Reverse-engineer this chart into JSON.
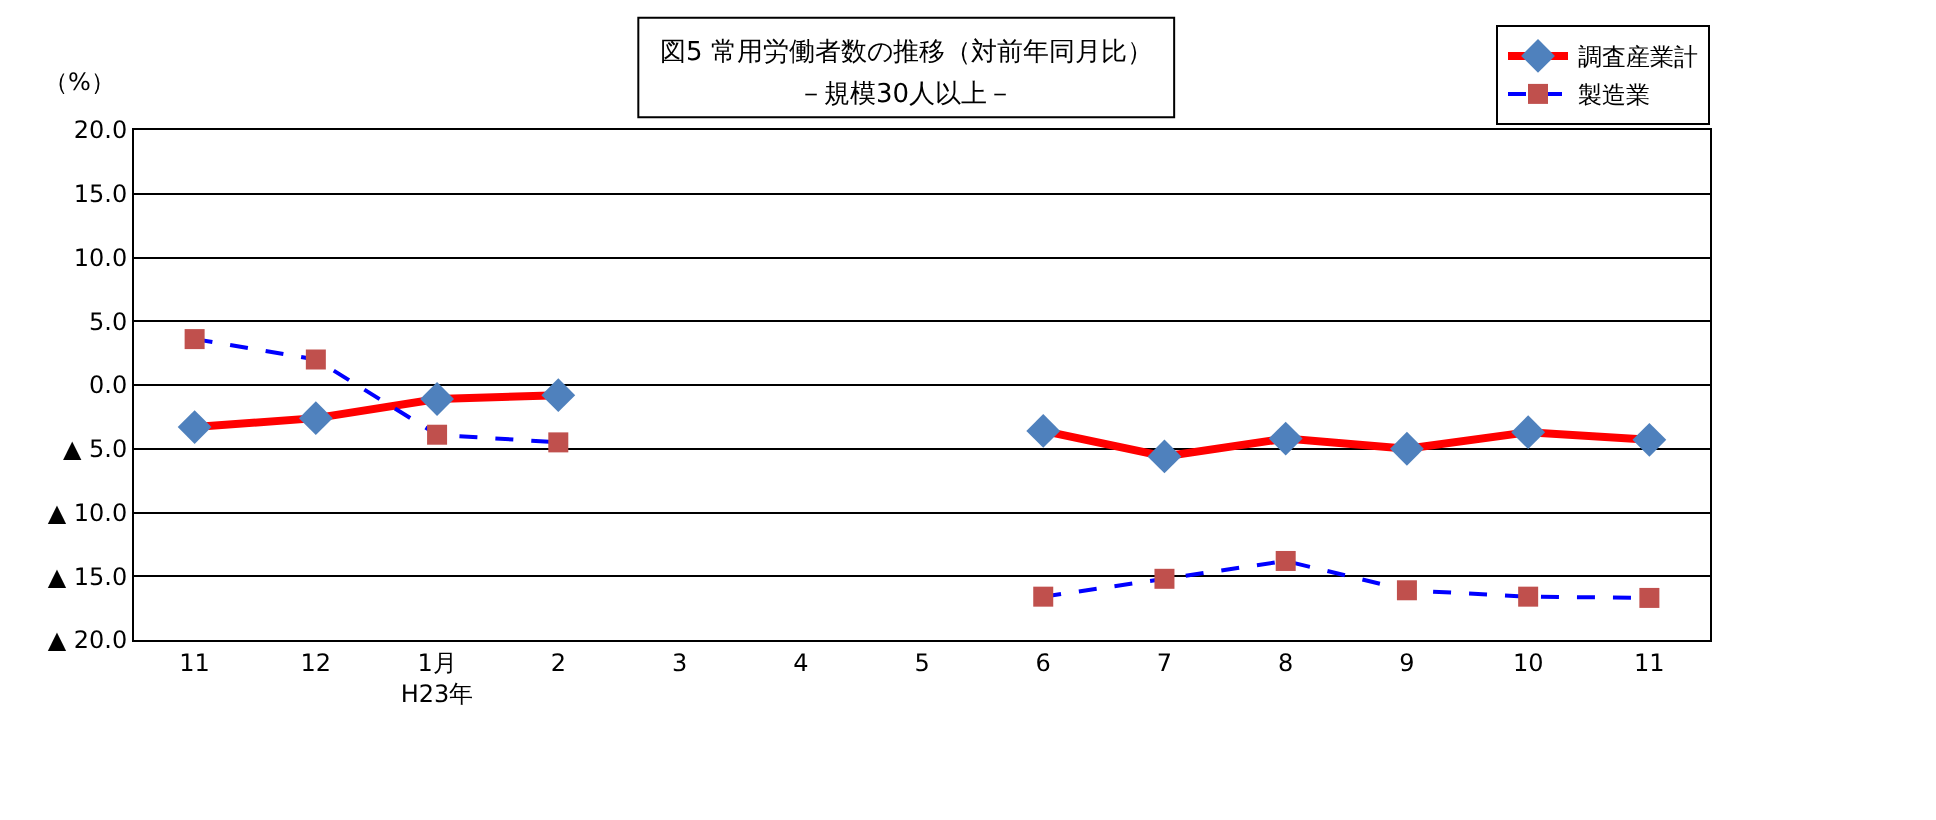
{
  "chart_data": {
    "type": "line",
    "title": "図5 常用労働者数の推移（対前年同月比）",
    "subtitle": "－規模30人以上－",
    "ylabel": "（%）",
    "categories": [
      "11",
      "12",
      "1月\nH23年",
      "2",
      "3",
      "4",
      "5",
      "6",
      "7",
      "8",
      "9",
      "10",
      "11"
    ],
    "series": [
      {
        "name": "調査産業計",
        "color": "#ff0000",
        "marker": "diamond",
        "line_style": "solid",
        "values": [
          -3.3,
          -2.6,
          -1.1,
          -0.8,
          null,
          null,
          null,
          -3.6,
          -5.6,
          -4.2,
          -5.0,
          -3.7,
          -4.3
        ]
      },
      {
        "name": "製造業",
        "color": "#0000ff",
        "marker": "square",
        "line_style": "dashed",
        "values": [
          3.6,
          2.0,
          -3.9,
          -4.5,
          null,
          null,
          null,
          -16.6,
          -15.2,
          -13.8,
          -16.1,
          -16.6,
          -16.7
        ]
      }
    ],
    "ylim": [
      -20,
      20
    ],
    "yticks": [
      {
        "value": -20,
        "label": "▲ 20.0"
      },
      {
        "value": -15,
        "label": "▲ 15.0"
      },
      {
        "value": -10,
        "label": "▲ 10.0"
      },
      {
        "value": -5,
        "label": "▲ 5.0"
      },
      {
        "value": 0,
        "label": "0.0"
      },
      {
        "value": 5,
        "label": "5.0"
      },
      {
        "value": 10,
        "label": "10.0"
      },
      {
        "value": 15,
        "label": "15.0"
      },
      {
        "value": 20,
        "label": "20.0"
      }
    ],
    "grid": "y",
    "legend": "top right"
  }
}
